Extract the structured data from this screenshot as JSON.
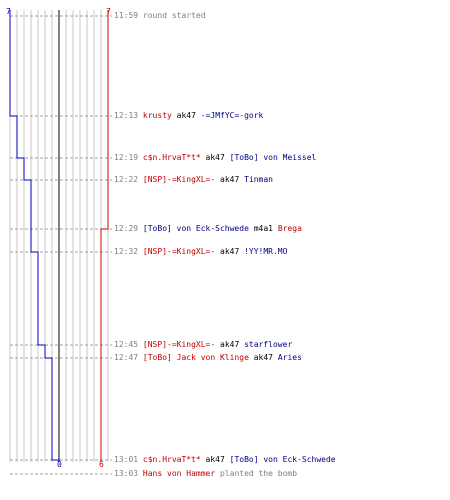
{
  "colors": {
    "ct": "#0000c0",
    "t": "#d00000",
    "grid": "#c8c8c8",
    "center": "#808080",
    "dash": "#a0a0a0"
  },
  "chart_data": {
    "type": "line",
    "series": [
      {
        "team": "blue",
        "color": "#0000c0",
        "x": [
          "11:59",
          "12:13",
          "12:19",
          "12:22",
          "12:29",
          "12:32",
          "12:45",
          "12:47",
          "13:01"
        ],
        "values": [
          7,
          6,
          5,
          4,
          4,
          3,
          2,
          1,
          0
        ]
      },
      {
        "team": "red",
        "color": "#d00000",
        "x": [
          "11:59",
          "12:13",
          "12:19",
          "12:22",
          "12:29",
          "12:32",
          "12:45",
          "12:47",
          "13:01"
        ],
        "values": [
          7,
          7,
          7,
          7,
          6,
          6,
          6,
          6,
          6
        ]
      }
    ]
  },
  "scoreboard": {
    "blue_start": "7",
    "red_start": "7",
    "blue_end": "0",
    "red_end": "6"
  },
  "events": [
    {
      "time": "11:59",
      "parts": [
        {
          "text": "round started",
          "color": "gray"
        }
      ]
    },
    {
      "time": "12:13",
      "parts": [
        {
          "text": "krusty",
          "color": "red"
        },
        {
          "text": "ak47",
          "color": "black"
        },
        {
          "text": "-=JMfYC=-gork",
          "color": "blue"
        }
      ]
    },
    {
      "time": "12:19",
      "parts": [
        {
          "text": "c$n.HrvaT*t*",
          "color": "red"
        },
        {
          "text": "ak47",
          "color": "black"
        },
        {
          "text": "[ToBo] von Meissel",
          "color": "blue"
        }
      ]
    },
    {
      "time": "12:22",
      "parts": [
        {
          "text": "[NSP]-=KingXL=-",
          "color": "red"
        },
        {
          "text": "ak47",
          "color": "black"
        },
        {
          "text": "Tinman",
          "color": "blue"
        }
      ]
    },
    {
      "time": "12:29",
      "parts": [
        {
          "text": "[ToBo] von Eck-Schwede",
          "color": "blue"
        },
        {
          "text": "m4a1",
          "color": "black"
        },
        {
          "text": "Brega",
          "color": "red"
        }
      ]
    },
    {
      "time": "12:32",
      "parts": [
        {
          "text": "[NSP]-=KingXL=-",
          "color": "red"
        },
        {
          "text": "ak47",
          "color": "black"
        },
        {
          "text": "!YY!MR.MO",
          "color": "blue"
        }
      ]
    },
    {
      "time": "12:45",
      "parts": [
        {
          "text": "[NSP]-=KingXL=-",
          "color": "red"
        },
        {
          "text": "ak47",
          "color": "black"
        },
        {
          "text": "starflower",
          "color": "blue"
        }
      ]
    },
    {
      "time": "12:47",
      "parts": [
        {
          "text": "[ToBo] Jack von Klinge",
          "color": "red"
        },
        {
          "text": "ak47",
          "color": "black"
        },
        {
          "text": "Aries",
          "color": "blue"
        }
      ]
    },
    {
      "time": "13:01",
      "parts": [
        {
          "text": "c$n.HrvaT*t*",
          "color": "red"
        },
        {
          "text": "ak47",
          "color": "black"
        },
        {
          "text": "[ToBo] von Eck-Schwede",
          "color": "blue"
        }
      ]
    },
    {
      "time": "13:03",
      "parts": [
        {
          "text": "Hans von Hammer",
          "color": "red"
        },
        {
          "text": "planted the bomb",
          "color": "gray"
        }
      ]
    }
  ]
}
